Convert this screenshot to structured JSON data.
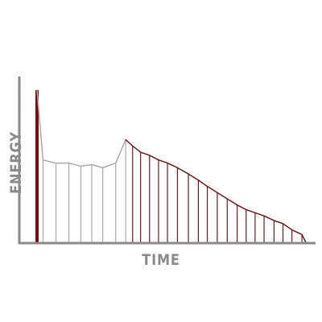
{
  "chart_data": {
    "type": "line",
    "title": "",
    "xlabel": "TIME",
    "ylabel": "ENERGY",
    "grid": false,
    "legend": "none",
    "xlim": [
      0,
      27
    ],
    "ylim": [
      0,
      100
    ],
    "colors": {
      "spike": "#7a0a0a",
      "gray": "#a9a9a9",
      "red": "#6b1a1a",
      "axis": "#8a8a8a"
    },
    "series": [
      {
        "values": [
          {
            "x": 0.0,
            "y": 98
          },
          {
            "x": 0.6,
            "y": 53
          },
          {
            "x": 1.9,
            "y": 51
          },
          {
            "x": 3.2,
            "y": 51
          },
          {
            "x": 4.4,
            "y": 49
          },
          {
            "x": 5.5,
            "y": 50
          },
          {
            "x": 6.6,
            "y": 48
          },
          {
            "x": 7.9,
            "y": 51
          },
          {
            "x": 8.9,
            "y": 66
          },
          {
            "x": 9.6,
            "y": 62
          },
          {
            "x": 10.4,
            "y": 58
          },
          {
            "x": 11.3,
            "y": 56
          },
          {
            "x": 12.2,
            "y": 53
          },
          {
            "x": 13.1,
            "y": 51
          },
          {
            "x": 14.1,
            "y": 48
          },
          {
            "x": 15.2,
            "y": 44
          },
          {
            "x": 16.2,
            "y": 40
          },
          {
            "x": 17.1,
            "y": 36
          },
          {
            "x": 18.1,
            "y": 32
          },
          {
            "x": 19.1,
            "y": 28
          },
          {
            "x": 20.1,
            "y": 24
          },
          {
            "x": 21.0,
            "y": 21
          },
          {
            "x": 21.9,
            "y": 19
          },
          {
            "x": 22.8,
            "y": 17
          },
          {
            "x": 23.8,
            "y": 14
          },
          {
            "x": 24.7,
            "y": 12
          },
          {
            "x": 25.6,
            "y": 8
          },
          {
            "x": 26.6,
            "y": 5
          },
          {
            "x": 27.0,
            "y": 0
          }
        ]
      }
    ],
    "spike_index": 0,
    "gray_last_index": 8
  }
}
